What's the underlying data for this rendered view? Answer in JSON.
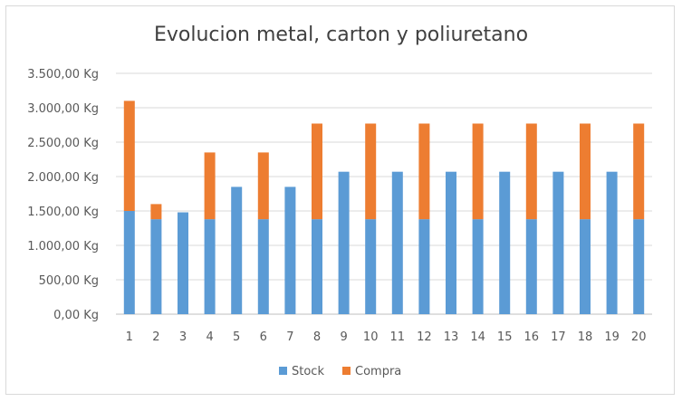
{
  "chart_data": {
    "type": "bar",
    "stacked": true,
    "title": "Evolucion metal, carton y poliuretano",
    "xlabel": "",
    "ylabel": "",
    "categories": [
      "1",
      "2",
      "3",
      "4",
      "5",
      "6",
      "7",
      "8",
      "9",
      "10",
      "11",
      "12",
      "13",
      "14",
      "15",
      "16",
      "17",
      "18",
      "19",
      "20"
    ],
    "ylim": [
      0,
      3500
    ],
    "ytick_values": [
      0,
      500,
      1000,
      1500,
      2000,
      2500,
      3000,
      3500
    ],
    "ytick_labels": [
      "0,00 Kg",
      "500,00 Kg",
      "1.000,00 Kg",
      "1.500,00 Kg",
      "2.000,00 Kg",
      "2.500,00 Kg",
      "3.000,00 Kg",
      "3.500,00 Kg"
    ],
    "grid": true,
    "legend_position": "bottom",
    "series": [
      {
        "name": "Stock",
        "color": "#5b9bd5",
        "values": [
          1500,
          1380,
          1480,
          1380,
          1850,
          1380,
          1850,
          1380,
          2070,
          1380,
          2070,
          1380,
          2070,
          1380,
          2070,
          1380,
          2070,
          1380,
          2070,
          1380
        ]
      },
      {
        "name": "Compra",
        "color": "#ed7d31",
        "values": [
          1600,
          220,
          0,
          970,
          0,
          970,
          0,
          1390,
          0,
          1390,
          0,
          1390,
          0,
          1390,
          0,
          1390,
          0,
          1390,
          0,
          1390
        ]
      }
    ]
  }
}
